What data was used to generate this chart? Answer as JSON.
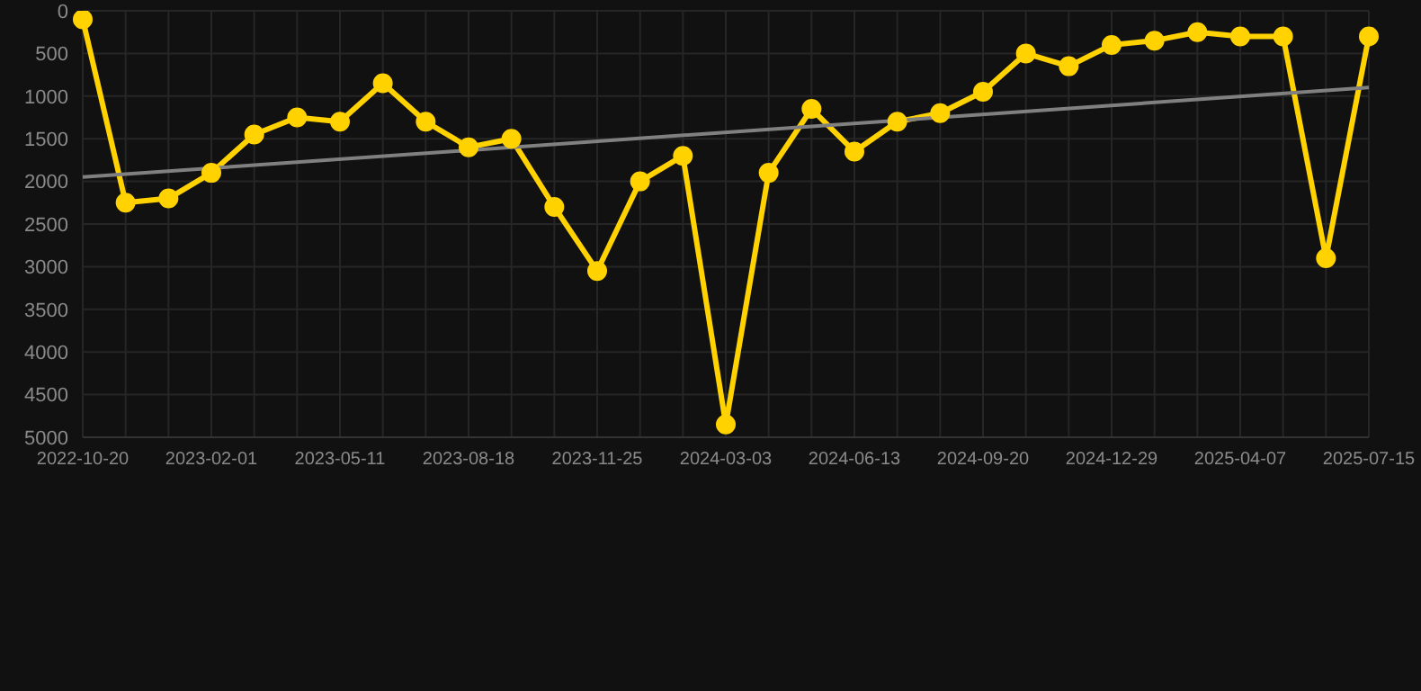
{
  "chart_data": {
    "type": "line",
    "categories": [
      "2022-10-20",
      null,
      null,
      "2023-02-01",
      null,
      null,
      "2023-05-11",
      null,
      null,
      "2023-08-18",
      null,
      null,
      "2023-11-25",
      null,
      null,
      "2024-03-03",
      null,
      null,
      "2024-06-13",
      null,
      null,
      "2024-09-20",
      null,
      null,
      "2024-12-29",
      null,
      null,
      "2025-04-07",
      null,
      null,
      "2025-07-15"
    ],
    "series": [
      {
        "color": "#ffd200",
        "marker": "circle",
        "values": [
          100,
          2250,
          2200,
          1900,
          1450,
          1250,
          1300,
          850,
          1300,
          1600,
          1500,
          2300,
          3050,
          2000,
          1700,
          4850,
          1900,
          1150,
          1650,
          1300,
          1200,
          950,
          500,
          650,
          400,
          350,
          250,
          300,
          300,
          2900,
          300
        ]
      },
      {
        "type": "line",
        "color": "#808080",
        "marker": "none",
        "values": [
          1950,
          null,
          null,
          null,
          null,
          null,
          null,
          null,
          null,
          null,
          null,
          null,
          null,
          null,
          null,
          null,
          null,
          null,
          null,
          null,
          null,
          null,
          null,
          null,
          null,
          null,
          null,
          null,
          null,
          null,
          900
        ]
      }
    ],
    "ylim": [
      5000,
      0
    ],
    "yticks": [
      0,
      500,
      1000,
      1500,
      2000,
      2500,
      3000,
      3500,
      4000,
      4500,
      5000
    ],
    "grid": true
  }
}
